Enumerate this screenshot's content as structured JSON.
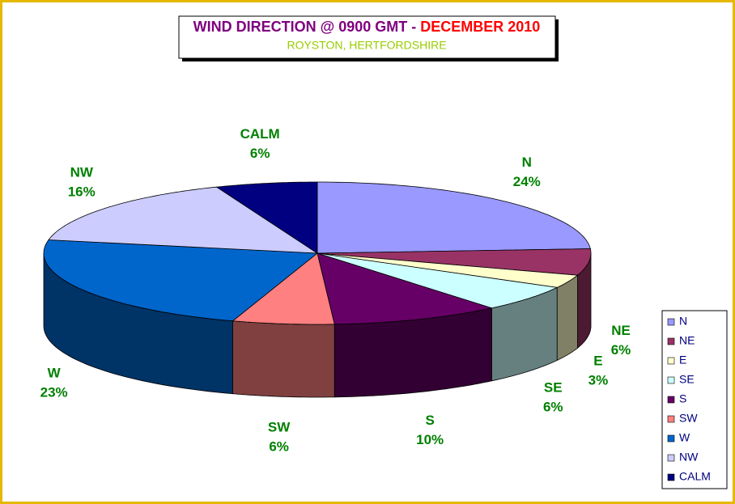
{
  "chart_data": {
    "type": "pie3d",
    "title": "WIND DIRECTION @ 0900 GMT -",
    "title_highlight": "DECEMBER 2010",
    "subtitle": "ROYSTON, HERTFORDSHIRE",
    "categories": [
      "N",
      "NE",
      "E",
      "SE",
      "S",
      "SW",
      "W",
      "NW",
      "CALM"
    ],
    "values": [
      24,
      6,
      3,
      6,
      10,
      6,
      23,
      16,
      6
    ],
    "value_labels": [
      "24%",
      "6%",
      "3%",
      "6%",
      "10%",
      "6%",
      "23%",
      "16%",
      "6%"
    ],
    "colors": [
      "#9999ff",
      "#993366",
      "#ffffcc",
      "#ccffff",
      "#660066",
      "#ff8080",
      "#0066cc",
      "#ccccff",
      "#000080"
    ],
    "legend": "right"
  }
}
